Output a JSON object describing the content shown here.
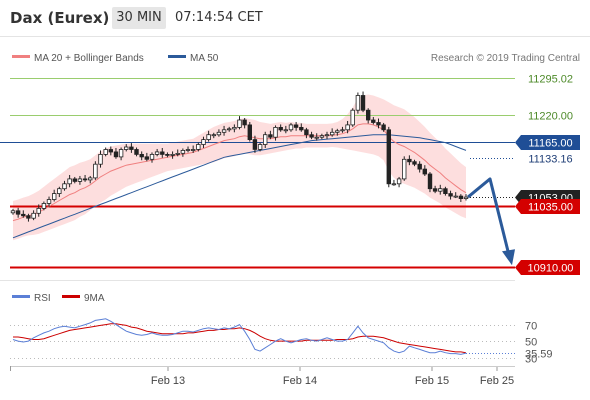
{
  "header": {
    "instrument": "Dax (Eurex)",
    "interval": "30 MIN",
    "time": "07:14:54 CET"
  },
  "legend": {
    "ma20": "MA 20 + Bollinger Bands",
    "ma50": "MA 50",
    "credit": "Research © 2019 Trading Central",
    "rsi": "RSI",
    "ma9": "9MA"
  },
  "colors": {
    "ma20": "#f08080",
    "band": "#fcd3d3",
    "ma50": "#2b5a9a",
    "candle_up": "#ffffff",
    "candle_down": "#222222",
    "resistance": "#9acd6e",
    "support": "#d40000",
    "pivot": "#1f4e96",
    "rsi": "#5b7fd6",
    "rsi_ma": "#cc0000",
    "arrow": "#2b5a9a"
  },
  "chart_data": [
    {
      "type": "candlestick",
      "x_labels": [
        "Feb 13",
        "Feb 14",
        "Feb 15",
        "Feb 25"
      ],
      "ylim": [
        10880,
        11320
      ],
      "levels": [
        {
          "value": 11295.02,
          "label": "11295.02",
          "kind": "resistance"
        },
        {
          "value": 11220.0,
          "label": "11220.00",
          "kind": "resistance"
        },
        {
          "value": 11165.0,
          "label": "11165.00",
          "kind": "pivot"
        },
        {
          "value": 11133.16,
          "label": "11133.16",
          "kind": "last"
        },
        {
          "value": 11053.0,
          "label": "11053.00",
          "kind": "current"
        },
        {
          "value": 11035.0,
          "label": "11035.00",
          "kind": "support"
        },
        {
          "value": 10910.0,
          "label": "10910.00",
          "kind": "support"
        }
      ],
      "close": [
        11025,
        11018,
        11015,
        11010,
        11020,
        11030,
        11040,
        11048,
        11060,
        11070,
        11080,
        11090,
        11085,
        11090,
        11088,
        11092,
        11120,
        11140,
        11150,
        11145,
        11135,
        11150,
        11155,
        11150,
        11140,
        11135,
        11130,
        11140,
        11145,
        11140,
        11138,
        11140,
        11142,
        11148,
        11150,
        11150,
        11160,
        11170,
        11180,
        11180,
        11185,
        11190,
        11192,
        11195,
        11210,
        11200,
        11170,
        11150,
        11160,
        11180,
        11175,
        11195,
        11190,
        11190,
        11200,
        11195,
        11190,
        11180,
        11175,
        11175,
        11178,
        11180,
        11185,
        11188,
        11190,
        11200,
        11230,
        11260,
        11230,
        11210,
        11205,
        11200,
        11190,
        11080,
        11080,
        11090,
        11130,
        11125,
        11120,
        11110,
        11100,
        11070,
        11065,
        11070,
        11060,
        11055,
        11055,
        11050,
        11053
      ],
      "ma20": [
        11005,
        11008,
        11012,
        11015,
        11018,
        11022,
        11028,
        11034,
        11040,
        11046,
        11052,
        11058,
        11062,
        11068,
        11072,
        11078,
        11086,
        11094,
        11100,
        11106,
        11110,
        11114,
        11118,
        11120,
        11122,
        11124,
        11126,
        11128,
        11130,
        11132,
        11134,
        11136,
        11138,
        11140,
        11142,
        11144,
        11148,
        11152,
        11156,
        11160,
        11164,
        11168,
        11170,
        11172,
        11176,
        11178,
        11176,
        11174,
        11172,
        11172,
        11172,
        11174,
        11176,
        11176,
        11178,
        11178,
        11178,
        11178,
        11178,
        11178,
        11178,
        11178,
        11179,
        11180,
        11182,
        11186,
        11192,
        11200,
        11202,
        11202,
        11200,
        11196,
        11190,
        11176,
        11166,
        11160,
        11156,
        11150,
        11144,
        11136,
        11128,
        11118,
        11110,
        11102,
        11092,
        11084,
        11076,
        11068,
        11062
      ],
      "band_half": [
        40,
        40,
        40,
        40,
        42,
        44,
        46,
        48,
        50,
        52,
        54,
        56,
        56,
        55,
        54,
        52,
        52,
        52,
        52,
        50,
        48,
        46,
        44,
        42,
        40,
        38,
        36,
        34,
        32,
        30,
        28,
        28,
        28,
        28,
        28,
        28,
        30,
        32,
        34,
        36,
        36,
        36,
        36,
        36,
        36,
        36,
        36,
        36,
        34,
        32,
        30,
        30,
        30,
        28,
        28,
        26,
        26,
        24,
        24,
        24,
        24,
        24,
        24,
        26,
        30,
        36,
        44,
        54,
        58,
        60,
        60,
        60,
        62,
        70,
        74,
        76,
        76,
        74,
        72,
        70,
        68,
        66,
        64,
        62,
        60,
        58,
        56,
        54,
        52
      ],
      "ma50": [
        10970,
        10974,
        10978,
        10982,
        10986,
        10990,
        10994,
        10998,
        11002,
        11006,
        11010,
        11014,
        11018,
        11022,
        11026,
        11030,
        11034,
        11038,
        11042,
        11046,
        11050,
        11054,
        11058,
        11062,
        11066,
        11070,
        11074,
        11078,
        11082,
        11086,
        11090,
        11094,
        11098,
        11102,
        11106,
        11110,
        11114,
        11118,
        11122,
        11126,
        11130,
        11134,
        11136,
        11138,
        11140,
        11142,
        11144,
        11146,
        11148,
        11150,
        11152,
        11154,
        11156,
        11158,
        11160,
        11162,
        11164,
        11166,
        11168,
        11169,
        11170,
        11171,
        11172,
        11173,
        11174,
        11175,
        11176,
        11177,
        11178,
        11179,
        11180,
        11180,
        11180,
        11180,
        11179,
        11178,
        11177,
        11176,
        11175,
        11174,
        11172,
        11170,
        11168,
        11166,
        11164,
        11160,
        11156,
        11152,
        11148
      ],
      "projection": {
        "from": 11053,
        "peak": 11090,
        "target": 10910
      }
    },
    {
      "type": "line",
      "name": "RSI",
      "ylim": [
        20,
        90
      ],
      "ticks": [
        70,
        50,
        30
      ],
      "current_label": "35.59",
      "series": [
        {
          "name": "RSI",
          "values": [
            52,
            50,
            49,
            50,
            54,
            57,
            60,
            62,
            65,
            67,
            68,
            67,
            66,
            68,
            70,
            72,
            75,
            76,
            77,
            74,
            70,
            66,
            62,
            60,
            58,
            57,
            58,
            60,
            58,
            57,
            57,
            58,
            60,
            62,
            62,
            61,
            63,
            65,
            66,
            65,
            64,
            66,
            65,
            67,
            70,
            62,
            52,
            40,
            38,
            42,
            46,
            50,
            53,
            50,
            48,
            50,
            52,
            53,
            51,
            50,
            52,
            54,
            52,
            50,
            50,
            52,
            60,
            68,
            60,
            54,
            52,
            50,
            48,
            42,
            38,
            36,
            38,
            44,
            42,
            40,
            38,
            36,
            36,
            38,
            36,
            35,
            35,
            34,
            35.59
          ]
        },
        {
          "name": "9MA",
          "values": [
            55,
            55,
            54,
            53,
            52,
            52,
            53,
            55,
            57,
            59,
            61,
            63,
            64,
            65,
            66,
            67,
            68,
            69,
            70,
            71,
            71,
            70,
            69,
            67,
            66,
            64,
            62,
            61,
            60,
            59,
            59,
            59,
            59,
            59,
            60,
            60,
            61,
            62,
            63,
            63,
            64,
            64,
            65,
            65,
            66,
            65,
            63,
            60,
            56,
            53,
            51,
            50,
            50,
            50,
            50,
            50,
            50,
            51,
            51,
            51,
            51,
            51,
            51,
            52,
            52,
            52,
            53,
            55,
            56,
            56,
            56,
            55,
            54,
            52,
            50,
            48,
            47,
            46,
            45,
            44,
            43,
            42,
            41,
            40,
            39,
            38,
            37,
            37,
            36
          ]
        }
      ]
    }
  ]
}
